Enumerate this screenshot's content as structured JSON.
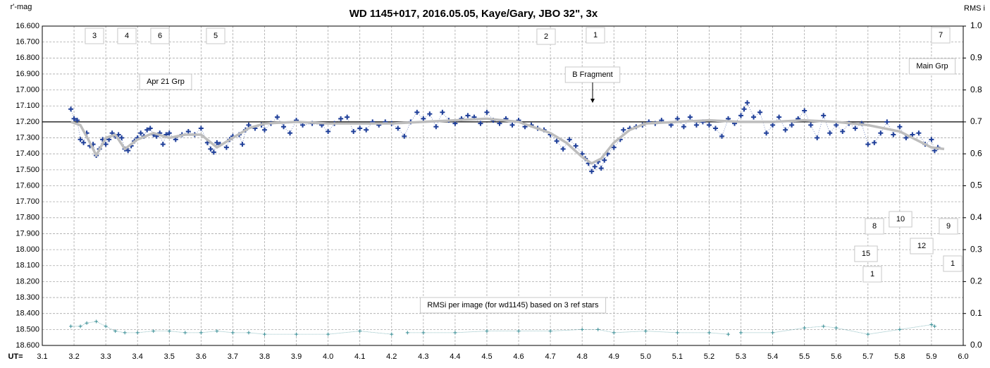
{
  "chart_data": {
    "type": "scatter",
    "title": "WD 1145+017,  2016.05.05,  Kaye/Gary,  JBO 32\", 3x",
    "ylabel": "r'-mag",
    "y2label": "RMS i",
    "xlabel": "UT=",
    "xlim": [
      3.1,
      6.0
    ],
    "ylim": [
      16.6,
      18.6
    ],
    "y2lim": [
      0.0,
      1.0
    ],
    "y_inverted": true,
    "grid": true,
    "xticks": [
      3.1,
      3.2,
      3.3,
      3.4,
      3.5,
      3.6,
      3.7,
      3.8,
      3.9,
      {
        "value": 4.0,
        "label": "4.0"
      },
      4.1,
      4.2,
      4.3,
      4.4,
      4.5,
      4.6,
      4.7,
      4.8,
      4.9,
      {
        "value": 5.0,
        "label": "5.0"
      },
      5.1,
      5.2,
      5.3,
      5.4,
      5.5,
      5.6,
      5.7,
      5.8,
      5.9,
      {
        "value": 6.0,
        "label": "6.0"
      }
    ],
    "yticks": [
      {
        "value": 16.6,
        "label": "16.600"
      },
      {
        "value": 16.7,
        "label": "16.700"
      },
      {
        "value": 16.8,
        "label": "16.800"
      },
      {
        "value": 16.9,
        "label": "16.900"
      },
      {
        "value": 17.0,
        "label": "17.000"
      },
      {
        "value": 17.1,
        "label": "17.100"
      },
      {
        "value": 17.2,
        "label": "17.200"
      },
      {
        "value": 17.3,
        "label": "17.300"
      },
      {
        "value": 17.4,
        "label": "17.400"
      },
      {
        "value": 17.5,
        "label": "17.500"
      },
      {
        "value": 17.6,
        "label": "17.600"
      },
      {
        "value": 17.7,
        "label": "17.700"
      },
      {
        "value": 17.8,
        "label": "17.800"
      },
      {
        "value": 17.9,
        "label": "17.900"
      },
      {
        "value": 18.0,
        "label": "18.000"
      },
      {
        "value": 18.1,
        "label": "18.100"
      },
      {
        "value": 18.2,
        "label": "18.200"
      },
      {
        "value": 18.3,
        "label": "18.300"
      },
      {
        "value": 18.4,
        "label": "18.400"
      },
      {
        "value": 18.5,
        "label": "18.500"
      },
      {
        "value": 18.6,
        "label": "18.600"
      }
    ],
    "y2ticks": [
      {
        "value": 0.0,
        "label": "0.0"
      },
      0.1,
      0.2,
      0.3,
      0.4,
      0.5,
      0.6,
      0.7,
      0.8,
      0.9,
      {
        "value": 1.0,
        "label": "1.0"
      }
    ],
    "hline": 17.2,
    "series": [
      {
        "mark": "cross",
        "color": "#1f3f99",
        "x": [
          3.19,
          3.2,
          3.21,
          3.22,
          3.23,
          3.24,
          3.25,
          3.26,
          3.27,
          3.28,
          3.29,
          3.3,
          3.31,
          3.32,
          3.33,
          3.34,
          3.35,
          3.36,
          3.37,
          3.38,
          3.39,
          3.4,
          3.41,
          3.42,
          3.43,
          3.44,
          3.45,
          3.46,
          3.47,
          3.48,
          3.49,
          3.5,
          3.52,
          3.54,
          3.56,
          3.58,
          3.6,
          3.62,
          3.63,
          3.64,
          3.65,
          3.66,
          3.68,
          3.69,
          3.7,
          3.72,
          3.73,
          3.74,
          3.75,
          3.77,
          3.79,
          3.8,
          3.82,
          3.84,
          3.86,
          3.88,
          3.9,
          3.92,
          3.95,
          3.98,
          4.0,
          4.02,
          4.04,
          4.06,
          4.08,
          4.1,
          4.12,
          4.14,
          4.16,
          4.18,
          4.2,
          4.22,
          4.24,
          4.26,
          4.28,
          4.3,
          4.32,
          4.34,
          4.36,
          4.38,
          4.4,
          4.42,
          4.44,
          4.46,
          4.48,
          4.5,
          4.52,
          4.54,
          4.56,
          4.58,
          4.6,
          4.62,
          4.64,
          4.66,
          4.68,
          4.7,
          4.72,
          4.74,
          4.76,
          4.78,
          4.8,
          4.81,
          4.82,
          4.83,
          4.84,
          4.85,
          4.86,
          4.87,
          4.88,
          4.9,
          4.92,
          4.93,
          4.95,
          4.97,
          4.99,
          5.01,
          5.03,
          5.05,
          5.08,
          5.1,
          5.12,
          5.14,
          5.16,
          5.18,
          5.2,
          5.22,
          5.24,
          5.26,
          5.28,
          5.3,
          5.31,
          5.32,
          5.34,
          5.36,
          5.38,
          5.4,
          5.42,
          5.44,
          5.46,
          5.48,
          5.5,
          5.52,
          5.54,
          5.56,
          5.58,
          5.6,
          5.62,
          5.64,
          5.66,
          5.68,
          5.7,
          5.72,
          5.74,
          5.76,
          5.78,
          5.8,
          5.82,
          5.84,
          5.86,
          5.88,
          5.9,
          5.91,
          5.92
        ],
        "values": [
          17.12,
          17.18,
          17.19,
          17.31,
          17.33,
          17.27,
          17.35,
          17.34,
          17.41,
          17.37,
          17.31,
          17.34,
          17.31,
          17.27,
          17.29,
          17.28,
          17.3,
          17.37,
          17.38,
          17.35,
          17.32,
          17.3,
          17.27,
          17.29,
          17.25,
          17.24,
          17.28,
          17.29,
          17.27,
          17.34,
          17.28,
          17.27,
          17.31,
          17.28,
          17.26,
          17.28,
          17.24,
          17.33,
          17.37,
          17.39,
          17.33,
          17.34,
          17.36,
          17.31,
          17.29,
          17.28,
          17.34,
          17.25,
          17.22,
          17.24,
          17.22,
          17.25,
          17.21,
          17.17,
          17.23,
          17.27,
          17.19,
          17.22,
          17.21,
          17.22,
          17.26,
          17.21,
          17.18,
          17.17,
          17.26,
          17.24,
          17.25,
          17.2,
          17.22,
          17.2,
          17.21,
          17.24,
          17.29,
          17.2,
          17.14,
          17.18,
          17.15,
          17.23,
          17.14,
          17.19,
          17.21,
          17.18,
          17.16,
          17.17,
          17.21,
          17.14,
          17.19,
          17.21,
          17.18,
          17.22,
          17.19,
          17.23,
          17.22,
          17.24,
          17.25,
          17.28,
          17.32,
          17.37,
          17.31,
          17.35,
          17.4,
          17.43,
          17.46,
          17.51,
          17.48,
          17.45,
          17.49,
          17.44,
          17.4,
          17.36,
          17.31,
          17.25,
          17.24,
          17.23,
          17.22,
          17.2,
          17.21,
          17.19,
          17.22,
          17.18,
          17.23,
          17.17,
          17.22,
          17.2,
          17.22,
          17.24,
          17.29,
          17.18,
          17.21,
          17.16,
          17.12,
          17.08,
          17.17,
          17.14,
          17.27,
          17.22,
          17.17,
          17.25,
          17.22,
          17.18,
          17.13,
          17.22,
          17.3,
          17.16,
          17.27,
          17.22,
          17.26,
          17.21,
          17.24,
          17.21,
          17.34,
          17.33,
          17.27,
          17.2,
          17.28,
          17.23,
          17.3,
          17.28,
          17.27,
          17.34,
          17.31,
          17.38,
          17.36
        ]
      },
      {
        "mark": "line",
        "color": "#bdbdbd",
        "x": [
          3.19,
          3.22,
          3.25,
          3.27,
          3.3,
          3.33,
          3.36,
          3.4,
          3.45,
          3.5,
          3.55,
          3.6,
          3.65,
          3.7,
          3.75,
          3.8,
          3.9,
          4.0,
          4.1,
          4.2,
          4.3,
          4.4,
          4.5,
          4.6,
          4.7,
          4.75,
          4.8,
          4.83,
          4.86,
          4.9,
          4.95,
          5.0,
          5.1,
          5.2,
          5.3,
          5.4,
          5.5,
          5.6,
          5.7,
          5.8,
          5.9,
          5.94
        ],
        "values": [
          17.2,
          17.22,
          17.33,
          17.41,
          17.3,
          17.28,
          17.37,
          17.31,
          17.27,
          17.3,
          17.28,
          17.28,
          17.36,
          17.3,
          17.24,
          17.21,
          17.2,
          17.21,
          17.21,
          17.21,
          17.2,
          17.19,
          17.18,
          17.2,
          17.27,
          17.33,
          17.42,
          17.46,
          17.43,
          17.33,
          17.25,
          17.21,
          17.2,
          17.19,
          17.2,
          17.2,
          17.19,
          17.2,
          17.22,
          17.26,
          17.36,
          17.37
        ]
      },
      {
        "mark": "small-cross",
        "color": "#3a8f96",
        "axis": "y2",
        "x": [
          3.19,
          3.22,
          3.24,
          3.27,
          3.3,
          3.33,
          3.36,
          3.4,
          3.45,
          3.5,
          3.55,
          3.6,
          3.65,
          3.7,
          3.75,
          3.8,
          3.9,
          4.0,
          4.1,
          4.2,
          4.22,
          4.25,
          4.3,
          4.4,
          4.5,
          4.6,
          4.7,
          4.8,
          4.85,
          4.9,
          5.0,
          5.1,
          5.2,
          5.26,
          5.27,
          5.3,
          5.4,
          5.5,
          5.56,
          5.6,
          5.7,
          5.8,
          5.9,
          5.91
        ],
        "values": [
          0.06,
          0.06,
          0.07,
          0.075,
          0.06,
          0.045,
          0.04,
          0.04,
          0.045,
          0.045,
          0.04,
          0.04,
          0.045,
          0.04,
          0.04,
          0.035,
          0.035,
          0.035,
          0.045,
          0.035,
          null,
          0.04,
          0.04,
          0.04,
          0.045,
          0.045,
          0.045,
          0.05,
          0.05,
          0.04,
          0.045,
          0.04,
          0.04,
          0.035,
          null,
          0.04,
          0.04,
          0.055,
          0.06,
          0.055,
          0.035,
          0.05,
          0.065,
          0.06
        ]
      }
    ],
    "annotations": [
      "3",
      "4",
      "6",
      "5",
      "2",
      "1",
      "7",
      "Apr 21 Grp",
      "B Fragment",
      "Main Grp",
      "8",
      "10",
      "9",
      "15",
      "12",
      "1",
      "1",
      "RMSi per image (for wd1145) based on 3 ref stars"
    ]
  }
}
